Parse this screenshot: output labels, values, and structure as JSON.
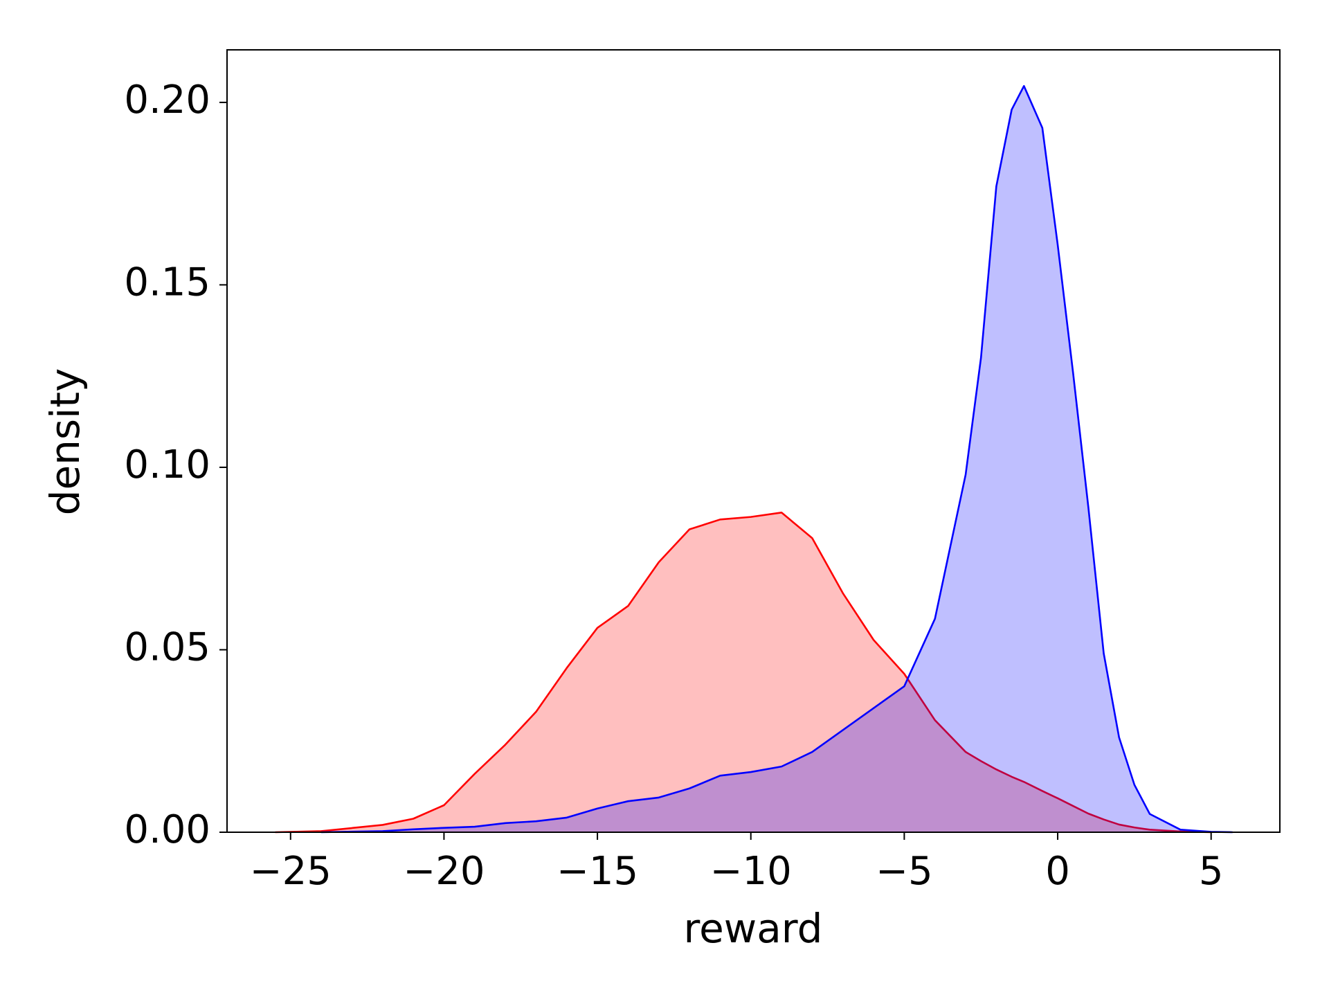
{
  "chart_data": {
    "type": "area",
    "x_label": "reward",
    "y_label": "density",
    "x": [
      -25.5,
      -24,
      -22,
      -21,
      -20,
      -19,
      -18,
      -17,
      -16,
      -15,
      -14,
      -13,
      -12,
      -11,
      -10,
      -9,
      -8,
      -7,
      -6,
      -5,
      -4,
      -3,
      -2.5,
      -2,
      -1.5,
      -1.1,
      -0.5,
      0,
      0.5,
      1,
      1.5,
      2,
      2.5,
      3,
      4,
      5,
      5.7
    ],
    "series": [
      {
        "color": "#ff0000",
        "fill_opacity": 0.25,
        "values": [
          0,
          0.0003,
          0.002,
          0.0037,
          0.0074,
          0.016,
          0.024,
          0.033,
          0.045,
          0.056,
          0.062,
          0.074,
          0.083,
          0.0857,
          0.0864,
          0.0876,
          0.0806,
          0.0655,
          0.0527,
          0.0434,
          0.0307,
          0.022,
          0.0195,
          0.0172,
          0.0152,
          0.0138,
          0.0113,
          0.0093,
          0.0072,
          0.0051,
          0.0035,
          0.0021,
          0.0013,
          0.0007,
          0.0002,
          0,
          null
        ]
      },
      {
        "color": "#0000ff",
        "fill_opacity": 0.25,
        "values": [
          null,
          0,
          0.0003,
          0.0008,
          0.0012,
          0.0015,
          0.0025,
          0.003,
          0.004,
          0.0065,
          0.0085,
          0.0095,
          0.012,
          0.0155,
          0.0165,
          0.018,
          0.022,
          0.028,
          0.034,
          0.04,
          0.0585,
          0.098,
          0.13,
          0.177,
          0.198,
          0.2045,
          0.193,
          0.161,
          0.126,
          0.089,
          0.049,
          0.026,
          0.013,
          0.005,
          0.0007,
          0.0001,
          0
        ]
      }
    ],
    "xlim": [
      -27.07,
      7.24
    ],
    "ylim": [
      0,
      0.2144
    ],
    "xticks": [
      {
        "value": -25,
        "label": "−25"
      },
      {
        "value": -20,
        "label": "−20"
      },
      {
        "value": -15,
        "label": "−15"
      },
      {
        "value": -10,
        "label": "−10"
      },
      {
        "value": -5,
        "label": "−5"
      },
      0,
      5
    ],
    "yticks": [
      {
        "value": 0,
        "label": "0.00"
      },
      {
        "value": 0.05,
        "label": "0.05"
      },
      {
        "value": 0.1,
        "label": "0.10"
      },
      {
        "value": 0.15,
        "label": "0.15"
      },
      {
        "value": 0.2,
        "label": "0.20"
      }
    ],
    "grid": false
  }
}
